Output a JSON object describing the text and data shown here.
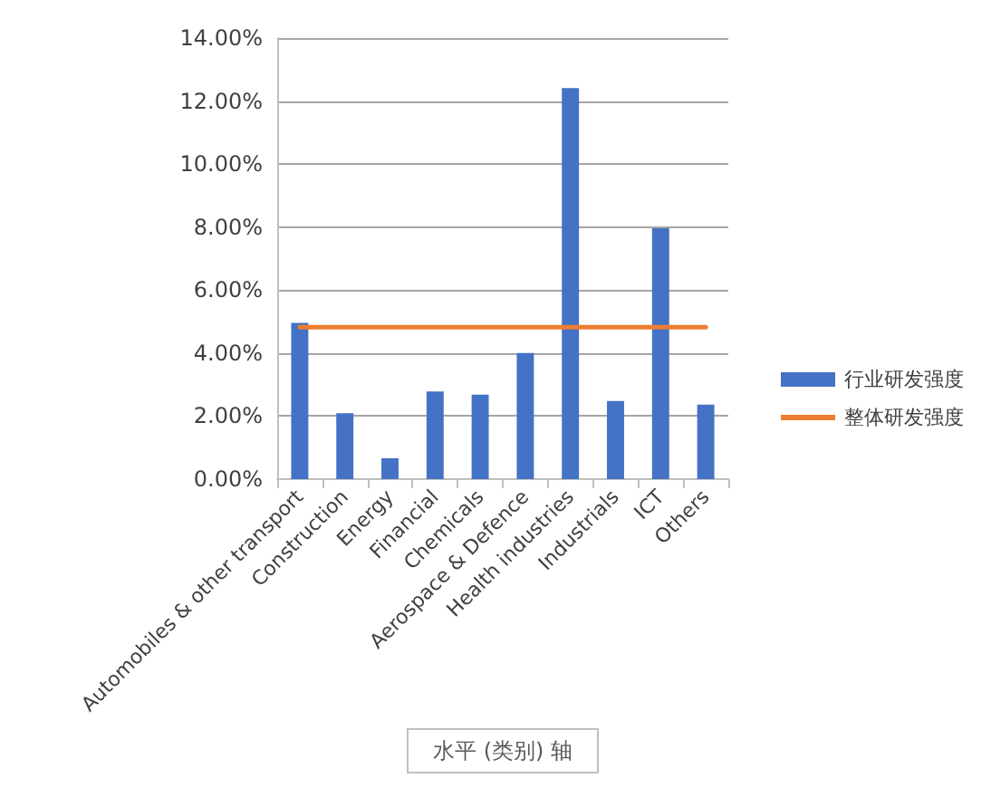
{
  "chart_data": {
    "type": "bar",
    "xlabel": "水平 (类别) 轴",
    "categories": [
      "Automobiles & other transport",
      "Construction",
      "Energy",
      "Financial",
      "Chemicals",
      "Aerospace & Defence",
      "Health industries",
      "Industrials",
      "ICT",
      "Others"
    ],
    "series": [
      {
        "name": "行业研发强度",
        "color": "#4472c4",
        "values": [
          4.96,
          2.09,
          0.66,
          2.78,
          2.68,
          4.0,
          12.41,
          2.48,
          7.96,
          2.36
        ]
      },
      {
        "name": "整体研发强度",
        "type": "line",
        "color": "#ed7d31",
        "marker": "none",
        "values": [
          4.82,
          4.82,
          4.82,
          4.82,
          4.82,
          4.82,
          4.82,
          4.82,
          4.82,
          4.82
        ]
      }
    ],
    "ylim": [
      0,
      14
    ],
    "yticks": [
      {
        "value": 0,
        "label": "0.00%"
      },
      {
        "value": 2,
        "label": "2.00%"
      },
      {
        "value": 4,
        "label": "4.00%"
      },
      {
        "value": 6,
        "label": "6.00%"
      },
      {
        "value": 8,
        "label": "8.00%"
      },
      {
        "value": 10,
        "label": "10.00%"
      },
      {
        "value": 12,
        "label": "12.00%"
      },
      {
        "value": 14,
        "label": "14.00%"
      }
    ],
    "grid": "y",
    "legend": "right"
  }
}
